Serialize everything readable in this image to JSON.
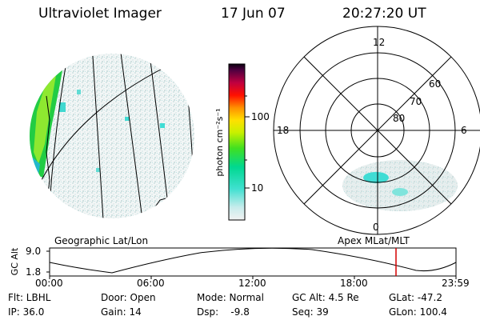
{
  "header": {
    "instrument": "Ultraviolet Imager",
    "date": "17 Jun 07",
    "time": "20:27:20 UT"
  },
  "colorbar": {
    "unit_label": "photon cm⁻²s⁻¹",
    "tick_labels": [
      "100",
      "10"
    ],
    "scale": "log"
  },
  "polar": {
    "mlt_labels": [
      "12",
      "18",
      "6",
      "0"
    ],
    "mlat_labels": [
      "60",
      "70",
      "80"
    ]
  },
  "captions": {
    "left": "Geographic Lat/Lon",
    "right": "Apex MLat/MLT"
  },
  "alt_plot": {
    "axis_label": "GC Alt",
    "y_ticks": [
      "9.0",
      "1.8"
    ],
    "x_ticks": [
      "00:00",
      "06:00",
      "12:00",
      "18:00",
      "23:59"
    ],
    "marker_color": "#d40000"
  },
  "info": {
    "flt": "Flt: LBHL",
    "ip": "IP: 36.0",
    "door": "Door: Open",
    "gain": "Gain: 14",
    "mode": "Mode: Normal",
    "dsp": "Dsp:    -9.8",
    "gc_alt": "GC Alt: 4.5 Re",
    "seq": "Seq: 39",
    "glat": "GLat: -47.2",
    "glon": "GLon: 100.4"
  }
}
